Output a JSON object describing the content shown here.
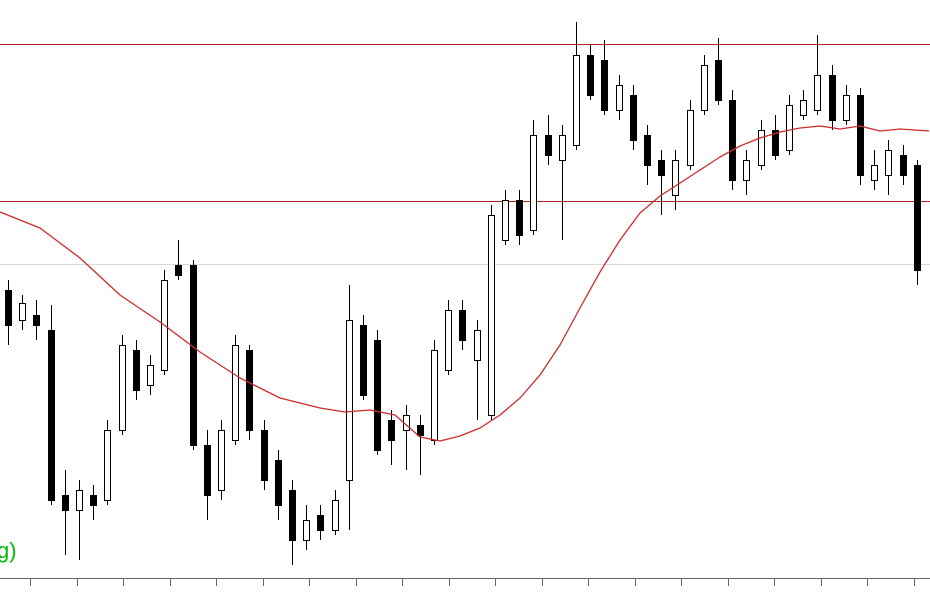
{
  "chart_data": {
    "type": "candlestick",
    "title": "",
    "units": "relative price units (no price axis labels visible in screenshot)",
    "ylim": [
      0,
      592
    ],
    "grid": "off",
    "legend": "none",
    "candles": [
      [
        302,
        312,
        247,
        267
      ],
      [
        272,
        297,
        262,
        289
      ],
      [
        277,
        292,
        252,
        267
      ],
      [
        262,
        287,
        87,
        92
      ],
      [
        97,
        122,
        37,
        82
      ],
      [
        82,
        112,
        32,
        102
      ],
      [
        97,
        107,
        72,
        87
      ],
      [
        92,
        172,
        87,
        162
      ],
      [
        162,
        257,
        157,
        247
      ],
      [
        242,
        252,
        192,
        202
      ],
      [
        207,
        237,
        197,
        227
      ],
      [
        222,
        322,
        217,
        312
      ],
      [
        327,
        352,
        312,
        317
      ],
      [
        327,
        332,
        142,
        147
      ],
      [
        147,
        162,
        72,
        97
      ],
      [
        102,
        172,
        92,
        162
      ],
      [
        152,
        257,
        147,
        247
      ],
      [
        242,
        247,
        152,
        162
      ],
      [
        162,
        172,
        102,
        112
      ],
      [
        132,
        142,
        72,
        87
      ],
      [
        102,
        112,
        27,
        52
      ],
      [
        52,
        87,
        42,
        72
      ],
      [
        77,
        87,
        52,
        62
      ],
      [
        62,
        102,
        57,
        92
      ],
      [
        112,
        307,
        62,
        272
      ],
      [
        267,
        277,
        192,
        197
      ],
      [
        252,
        262,
        137,
        142
      ],
      [
        172,
        182,
        127,
        152
      ],
      [
        162,
        187,
        122,
        177
      ],
      [
        167,
        177,
        117,
        157
      ],
      [
        152,
        252,
        147,
        242
      ],
      [
        222,
        292,
        217,
        282
      ],
      [
        282,
        292,
        242,
        252
      ],
      [
        232,
        272,
        172,
        262
      ],
      [
        177,
        387,
        172,
        377
      ],
      [
        352,
        402,
        347,
        392
      ],
      [
        392,
        402,
        347,
        357
      ],
      [
        362,
        472,
        357,
        457
      ],
      [
        457,
        477,
        427,
        437
      ],
      [
        432,
        467,
        352,
        457
      ],
      [
        447,
        570,
        442,
        537
      ],
      [
        537,
        547,
        492,
        497
      ],
      [
        532,
        552,
        477,
        482
      ],
      [
        482,
        517,
        472,
        507
      ],
      [
        497,
        507,
        442,
        452
      ],
      [
        457,
        467,
        407,
        427
      ],
      [
        432,
        442,
        377,
        417
      ],
      [
        397,
        442,
        382,
        432
      ],
      [
        427,
        492,
        422,
        482
      ],
      [
        482,
        537,
        477,
        527
      ],
      [
        532,
        554,
        487,
        492
      ],
      [
        492,
        502,
        402,
        412
      ],
      [
        412,
        442,
        397,
        432
      ],
      [
        427,
        472,
        422,
        462
      ],
      [
        462,
        477,
        432,
        437
      ],
      [
        442,
        497,
        437,
        487
      ],
      [
        477,
        502,
        472,
        492
      ],
      [
        482,
        557,
        477,
        517
      ],
      [
        517,
        527,
        462,
        472
      ],
      [
        472,
        507,
        467,
        497
      ],
      [
        497,
        504,
        407,
        417
      ],
      [
        412,
        442,
        402,
        427
      ],
      [
        417,
        452,
        397,
        442
      ],
      [
        437,
        447,
        407,
        417
      ],
      [
        427,
        432,
        307,
        322
      ]
    ],
    "candle_format": "[open, high, low, close] in relative price units (price = 592 - screen_y)",
    "moving_average": [
      [
        0,
        380
      ],
      [
        40,
        364
      ],
      [
        80,
        334
      ],
      [
        120,
        297
      ],
      [
        160,
        270
      ],
      [
        200,
        240
      ],
      [
        240,
        214
      ],
      [
        280,
        194
      ],
      [
        320,
        184
      ],
      [
        345,
        180
      ],
      [
        370,
        182
      ],
      [
        395,
        177
      ],
      [
        420,
        155
      ],
      [
        440,
        151
      ],
      [
        460,
        156
      ],
      [
        480,
        164
      ],
      [
        500,
        177
      ],
      [
        520,
        194
      ],
      [
        540,
        217
      ],
      [
        560,
        247
      ],
      [
        580,
        284
      ],
      [
        600,
        320
      ],
      [
        620,
        352
      ],
      [
        640,
        379
      ],
      [
        660,
        396
      ],
      [
        680,
        409
      ],
      [
        700,
        422
      ],
      [
        720,
        435
      ],
      [
        740,
        446
      ],
      [
        760,
        454
      ],
      [
        780,
        460
      ],
      [
        800,
        464
      ],
      [
        820,
        466
      ],
      [
        840,
        463
      ],
      [
        860,
        466
      ],
      [
        880,
        461
      ],
      [
        900,
        463
      ],
      [
        929,
        461
      ]
    ],
    "h_lines": [
      {
        "name": "upper-resistance-line",
        "price": 548,
        "color": "#b22222"
      },
      {
        "name": "mid-resistance-line",
        "price": 391,
        "color": "#b22222"
      },
      {
        "name": "grid-level-line",
        "price": 328,
        "color": "#d8d8d8"
      }
    ],
    "x_axis": {
      "tick_start": 30,
      "tick_step": 46.5,
      "tick_count": 20,
      "axis_y": 578
    },
    "layout": {
      "x_start": 8,
      "x_step": 14.2,
      "body_width": 7
    },
    "colors": {
      "up_body": "#ffffff",
      "down_body": "#000000",
      "outline": "#000000",
      "ma_line": "#cc2b2b",
      "axis": "#666666",
      "background": "#ffffff"
    }
  },
  "overlay_label": {
    "text": "g)",
    "color": "#00ba00"
  }
}
